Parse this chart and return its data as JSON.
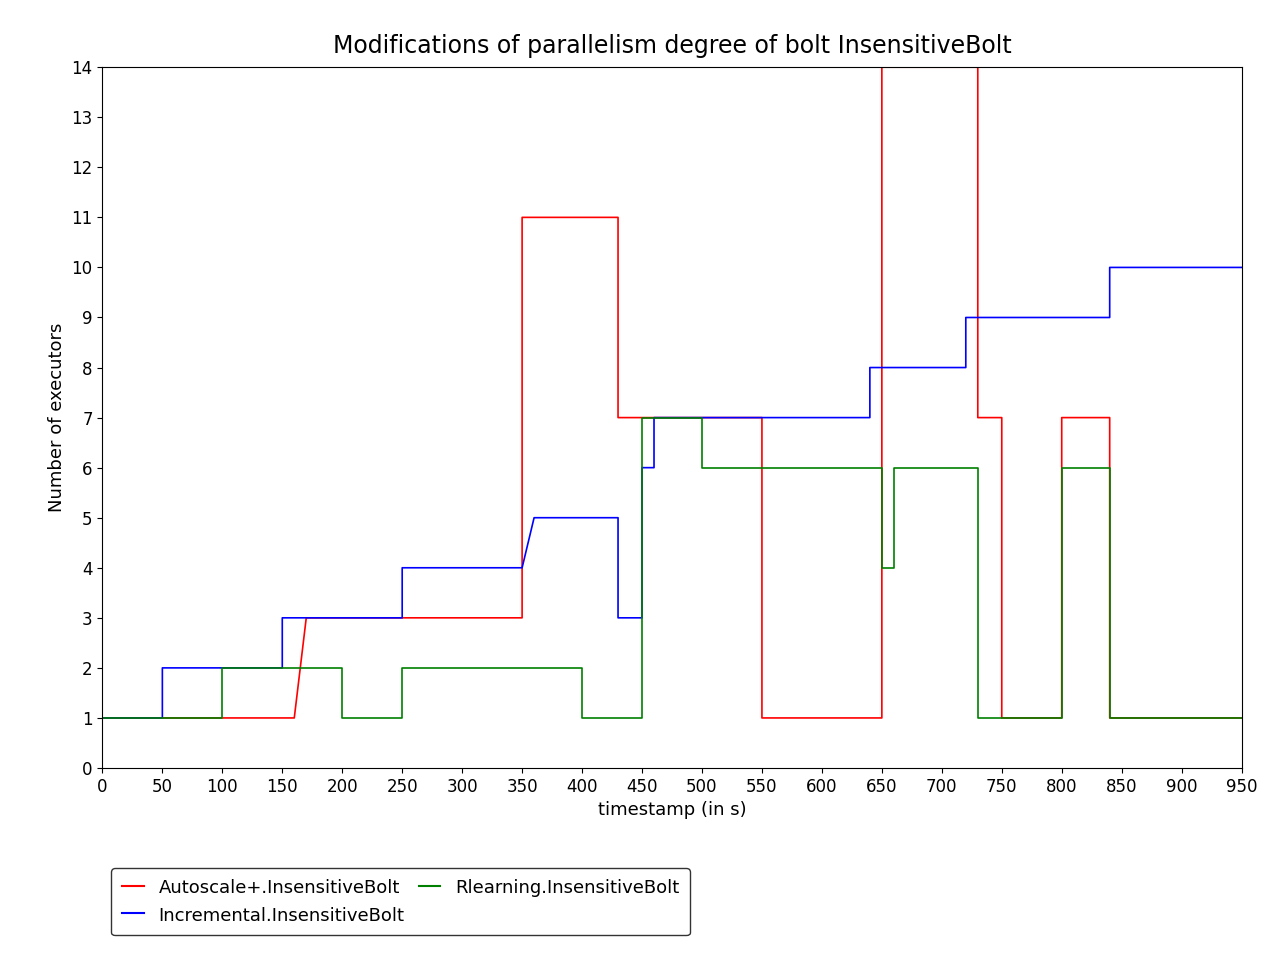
{
  "title": "Modifications of parallelism degree of bolt InsensitiveBolt",
  "xlabel": "timestamp (in s)",
  "ylabel": "Number of executors",
  "xlim": [
    0,
    950
  ],
  "ylim": [
    0,
    14
  ],
  "yticks": [
    0,
    1,
    2,
    3,
    4,
    5,
    6,
    7,
    8,
    9,
    10,
    11,
    12,
    13,
    14
  ],
  "xticks": [
    0,
    50,
    100,
    150,
    200,
    250,
    300,
    350,
    400,
    450,
    500,
    550,
    600,
    650,
    700,
    750,
    800,
    850,
    900,
    950
  ],
  "red_x": [
    0,
    160,
    160,
    170,
    200,
    200,
    350,
    350,
    430,
    430,
    540,
    540,
    550,
    550,
    650,
    650,
    730,
    730,
    750,
    750,
    800,
    800,
    840,
    840,
    950
  ],
  "red_y": [
    1,
    1,
    1,
    3,
    3,
    3,
    3,
    11,
    11,
    7,
    7,
    7,
    7,
    1,
    1,
    14,
    14,
    7,
    7,
    1,
    1,
    7,
    7,
    1,
    1
  ],
  "blue_x": [
    0,
    50,
    50,
    100,
    100,
    150,
    150,
    200,
    200,
    250,
    250,
    350,
    350,
    360,
    360,
    410,
    410,
    430,
    430,
    450,
    450,
    460,
    460,
    540,
    540,
    640,
    640,
    660,
    660,
    720,
    720,
    800,
    800,
    840,
    840,
    950
  ],
  "blue_y": [
    1,
    1,
    2,
    2,
    2,
    2,
    3,
    3,
    3,
    3,
    4,
    4,
    4,
    5,
    5,
    5,
    5,
    5,
    3,
    3,
    6,
    6,
    7,
    7,
    7,
    7,
    8,
    8,
    8,
    8,
    9,
    9,
    9,
    9,
    10,
    10
  ],
  "green_x": [
    0,
    100,
    100,
    150,
    150,
    200,
    200,
    250,
    250,
    400,
    400,
    450,
    450,
    500,
    500,
    550,
    550,
    650,
    650,
    660,
    660,
    730,
    730,
    800,
    800,
    840,
    840,
    950
  ],
  "green_y": [
    1,
    1,
    2,
    2,
    2,
    2,
    1,
    1,
    2,
    2,
    1,
    1,
    7,
    7,
    6,
    6,
    6,
    6,
    4,
    4,
    6,
    6,
    1,
    1,
    6,
    6,
    1,
    1
  ],
  "red_color": "#ff0000",
  "blue_color": "#0000ff",
  "green_color": "#008000",
  "legend_labels": [
    "Autoscale+.InsensitiveBolt",
    "Incremental.InsensitiveBolt",
    "Rlearning.InsensitiveBolt"
  ],
  "title_fontsize": 17,
  "label_fontsize": 13,
  "tick_fontsize": 12,
  "legend_fontsize": 13
}
